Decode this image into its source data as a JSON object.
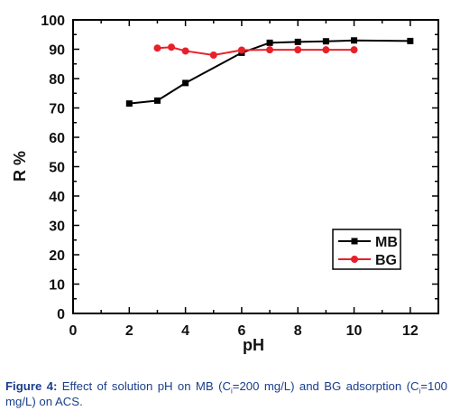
{
  "chart_data": {
    "type": "line",
    "title": "",
    "xlabel": "pH",
    "ylabel": "R %",
    "xlim": [
      0,
      13
    ],
    "ylim": [
      0,
      100
    ],
    "x_ticks": [
      "0",
      "2",
      "4",
      "6",
      "8",
      "10",
      "12"
    ],
    "y_ticks": [
      "0",
      "10",
      "20",
      "30",
      "40",
      "50",
      "60",
      "70",
      "80",
      "90",
      "100"
    ],
    "grid": false,
    "legend_position": "lower-right",
    "series": [
      {
        "name": "MB",
        "color": "#000000",
        "marker": "square",
        "x": [
          2,
          3,
          4,
          6,
          7,
          8,
          9,
          10,
          12
        ],
        "y": [
          71.5,
          72.5,
          78.5,
          88.8,
          92.2,
          92.5,
          92.7,
          93.0,
          92.8
        ]
      },
      {
        "name": "BG",
        "color": "#e8202a",
        "marker": "circle",
        "x": [
          3,
          3.5,
          4,
          5,
          6,
          7,
          8,
          9,
          10
        ],
        "y": [
          90.4,
          90.7,
          89.4,
          88.0,
          89.7,
          89.8,
          89.8,
          89.8,
          89.8
        ]
      }
    ]
  },
  "caption": {
    "label": "Figure 4:",
    "text_1": " Effect of solution pH on MB (C",
    "sub_1": "i",
    "text_2": "=200 mg/L) and BG adsorption (C",
    "sub_2": "i",
    "text_3": "=100 mg/L) on ACS."
  }
}
